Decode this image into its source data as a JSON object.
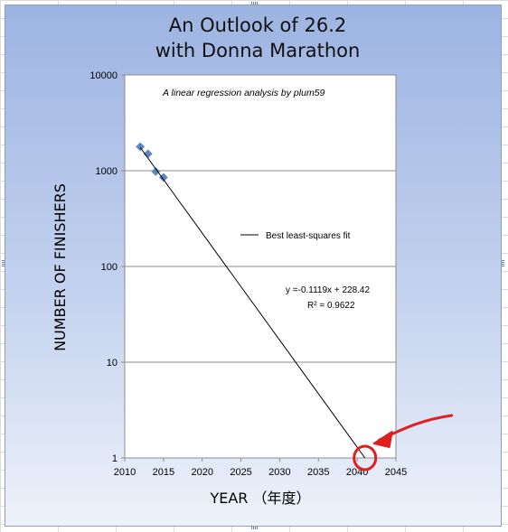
{
  "chart_data": {
    "type": "scatter",
    "title_line1": "An Outlook of 26.2",
    "title_line2": "with Donna Marathon",
    "subtitle": "A linear regression analysis by plum59",
    "xlabel": "YEAR （年度）",
    "ylabel": "NUMBER OF FINISHERS",
    "xlim": [
      2010,
      2045
    ],
    "ylim": [
      1,
      10000
    ],
    "y_scale": "log",
    "x_ticks": [
      2010,
      2015,
      2020,
      2025,
      2030,
      2035,
      2040,
      2045
    ],
    "y_ticks": [
      1,
      10,
      100,
      1000,
      10000
    ],
    "grid": "horizontal",
    "series": [
      {
        "type": "scatter",
        "x": [
          2012,
          2013,
          2014,
          2015
        ],
        "y": [
          1780,
          1500,
          980,
          850
        ],
        "color": "#5b86c4"
      },
      {
        "type": "line",
        "name": "Best least-squares fit",
        "x": [
          2012,
          2041
        ],
        "y": [
          1750,
          1
        ],
        "color": "#000000"
      }
    ],
    "legend": "Best least-squares fit",
    "equation": "y =-0.1119x + 228.42",
    "r_squared": "R² = 0.9622",
    "annotation": {
      "type": "red-circle-arrow",
      "x": 2041,
      "y": 1,
      "color": "#e02020"
    }
  }
}
